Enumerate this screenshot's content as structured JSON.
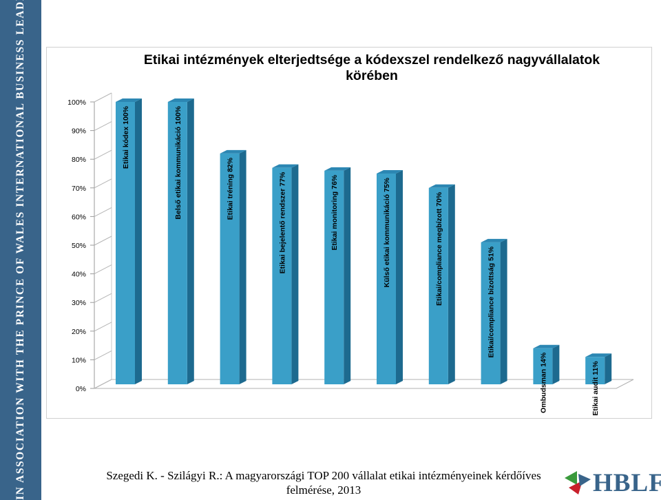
{
  "side_band": {
    "text": "IN ASSOCIATION WITH THE PRINCE OF WALES INTERNATIONAL BUSINESS LEADERS FORUM"
  },
  "citation": {
    "line1": "Szegedi K. - Szilágyi R.: A magyarországi TOP 200 vállalat etikai intézményeinek kérdőíves",
    "line2": "felmérése, 2013"
  },
  "logo": {
    "text": "HBLF",
    "colors": {
      "green": "#3a9a3c",
      "red": "#c8202b",
      "blue": "#39648a"
    }
  },
  "colors": {
    "bar_front": "#3a9fc8",
    "bar_side": "#1d6a8f",
    "bar_top": "#2c87b3",
    "side_band": "#39648a"
  },
  "chart_data": {
    "type": "bar",
    "title_line1": "Etikai intézmények elterjedtsége a kódexszel rendelkező nagyvállalatok",
    "title_line2": "körében",
    "y_ticks": [
      "0%",
      "10%",
      "20%",
      "30%",
      "40%",
      "50%",
      "60%",
      "70%",
      "80%",
      "90%",
      "100%"
    ],
    "ylim": [
      0,
      100
    ],
    "grid": false,
    "legend": "none",
    "three_d": true,
    "categories": [
      "Etikai kódex 100%",
      "Belső etikai kommunikáció 100%",
      "Etikai tréning 82%",
      "Etikai bejelentő rendszer 77%",
      "Etikai monitoring 76%",
      "Külső etikai kommunikáció 75%",
      "Etikai/compliance megbízott 70%",
      "Etikai/compliance bizottság 51%",
      "Ombudsman 14%",
      "Etikai audit 11%"
    ],
    "values": [
      100,
      100,
      82,
      77,
      76,
      75,
      70,
      51,
      14,
      11
    ]
  }
}
